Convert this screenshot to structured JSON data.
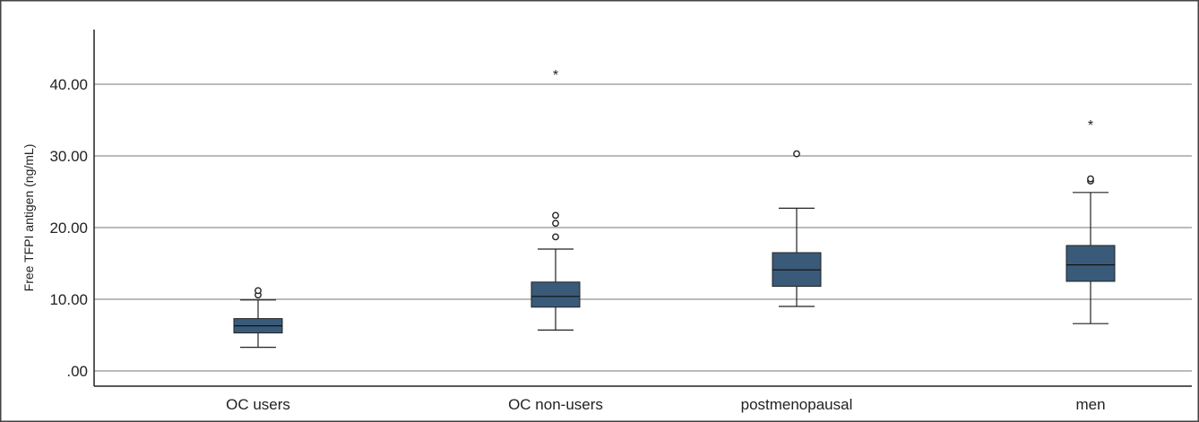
{
  "chart_data": {
    "type": "box",
    "title": "",
    "xlabel": "",
    "ylabel": "Free TFPI antigen (ng/mL)",
    "ylim": [
      0,
      48
    ],
    "yticks": [
      ".00",
      "10.00",
      "20.00",
      "30.00",
      "40.00"
    ],
    "ytick_values": [
      0,
      10,
      20,
      30,
      40
    ],
    "grid": "horizontal",
    "box_color": "#3a5a7a",
    "categories": [
      "OC users",
      "OC non-users",
      "postmenopausal",
      "men"
    ],
    "boxes": [
      {
        "category": "OC users",
        "whisker_low": 3.3,
        "q1": 5.3,
        "median": 6.3,
        "q3": 7.3,
        "whisker_high": 9.9,
        "outliers": [
          10.6,
          11.2
        ],
        "extremes": []
      },
      {
        "category": "OC non-users",
        "whisker_low": 5.7,
        "q1": 8.9,
        "median": 10.4,
        "q3": 12.4,
        "whisker_high": 17.0,
        "outliers": [
          18.7,
          20.6,
          21.7
        ],
        "extremes": [
          41.5
        ]
      },
      {
        "category": "postmenopausal",
        "whisker_low": 9.0,
        "q1": 11.8,
        "median": 14.1,
        "q3": 16.5,
        "whisker_high": 22.7,
        "outliers": [
          30.3
        ],
        "extremes": []
      },
      {
        "category": "men",
        "whisker_low": 6.6,
        "q1": 12.5,
        "median": 14.8,
        "q3": 17.5,
        "whisker_high": 24.9,
        "outliers": [
          26.5,
          26.8
        ],
        "extremes": [
          34.5
        ]
      }
    ]
  }
}
